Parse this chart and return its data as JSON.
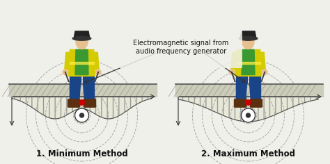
{
  "background_color": "#f0f0eb",
  "annotation_text": "Electromagnetic signal from\naudio frequency generator",
  "annotation_fontsize": 7.0,
  "label1": "1. Minimum Method",
  "label2": "2. Maximum Method",
  "label_fontsize": 8.5,
  "label_fontweight": "bold",
  "ground_color": "#ccccbb",
  "ground_line_color": "#555555",
  "hatch_color": "#999988",
  "dashed_circle_color": "#aaaaaa",
  "curve_fill_color": "#ddddcc",
  "curve_line_color": "#555555",
  "text_color": "#111111",
  "vest_yellow": "#d4cc00",
  "vest_stripe": "#ffee00",
  "shirt_green": "#3a9930",
  "pants_blue": "#1a4488",
  "skin": "#e8c090",
  "hair": "#332211",
  "boot_color": "#5a3010",
  "red_dot": "#cc0000",
  "white": "#ffffff",
  "dark_gray": "#333333"
}
